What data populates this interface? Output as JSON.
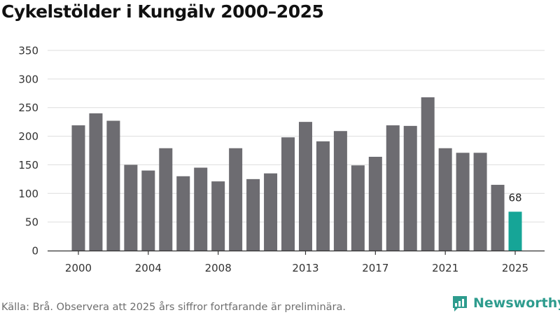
{
  "chart_data": {
    "type": "bar",
    "title": "Cykelstölder i Kungälv 2000–2025",
    "categories": [
      "2000",
      "2001",
      "2002",
      "2003",
      "2004",
      "2005",
      "2006",
      "2007",
      "2008",
      "2009",
      "2010",
      "2011",
      "2012",
      "2013",
      "2014",
      "2015",
      "2016",
      "2017",
      "2018",
      "2019",
      "2020",
      "2021",
      "2022",
      "2023",
      "2024",
      "2025"
    ],
    "values": [
      219,
      240,
      227,
      150,
      140,
      179,
      130,
      145,
      121,
      179,
      125,
      135,
      198,
      225,
      191,
      209,
      149,
      164,
      219,
      218,
      268,
      179,
      171,
      171,
      115,
      68
    ],
    "x_tick_labels": [
      "2000",
      "2004",
      "2008",
      "2013",
      "2017",
      "2021",
      "2025"
    ],
    "y_ticks": [
      0,
      50,
      100,
      150,
      200,
      250,
      300,
      350
    ],
    "ylim": [
      0,
      350
    ],
    "xlabel": "",
    "ylabel": "",
    "annotations": [
      {
        "category": "2025",
        "text": "68"
      }
    ],
    "colors": {
      "bar": "#6d6c71",
      "highlight": "#16a597",
      "grid": "#dddddd",
      "axis": "#333333"
    }
  },
  "footer": {
    "source": "Källa: Brå. Observera att 2025 års siffror fortfarande är preliminära."
  },
  "brand": {
    "name": "Newsworthy",
    "icon": "newsworthy-logo-icon",
    "color": "#2e9c8e"
  }
}
